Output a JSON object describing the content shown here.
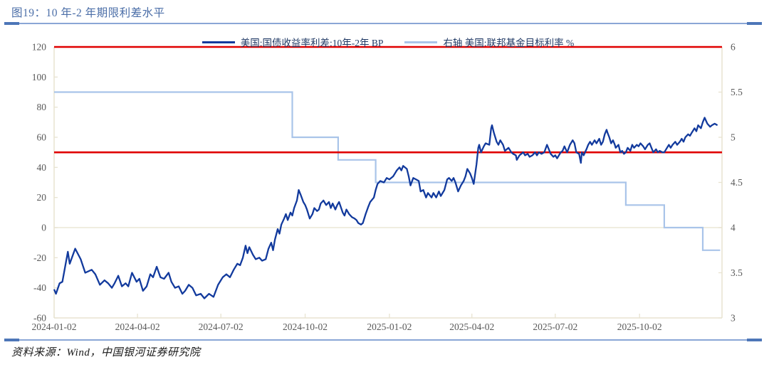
{
  "header": {
    "title": "图19：10 年-2 年期限利差水平"
  },
  "footer": {
    "source": "资料来源：Wind，中国银河证券研究院"
  },
  "colors": {
    "title_blue": "#4a6da7",
    "rule_line": "#8aa6d6",
    "rule_dash": "#4d76b8",
    "axis_text": "#595959",
    "grid": "#ece7d6",
    "spine": "#e8e3d1",
    "spread_line": "#123a9d",
    "fed_line": "#a9c4e9",
    "reference_red": "#e00000",
    "legend_text": "#1f3864"
  },
  "chart_data": {
    "type": "line",
    "title": "图19：10 年-2 年期限利差水平",
    "x_domain": [
      "2024-01-02",
      "2025-12-31"
    ],
    "x_ticks": [
      "2024-01-02",
      "2024-04-02",
      "2024-07-02",
      "2024-10-02",
      "2025-01-02",
      "2025-04-02",
      "2025-07-02",
      "2025-10-02"
    ],
    "left_axis": {
      "min": -60,
      "max": 120,
      "ticks": [
        120,
        100,
        80,
        60,
        40,
        20,
        0,
        -20,
        -40,
        -60
      ],
      "label": "BP"
    },
    "right_axis": {
      "min": 3,
      "max": 6,
      "ticks": [
        6,
        5.5,
        5,
        4.5,
        4,
        3.5,
        3
      ],
      "label": "%"
    },
    "grid": "zero-line-only",
    "legend_position": "top-center",
    "reference_lines": [
      {
        "axis": "left",
        "value": 120,
        "color": "#e00000"
      },
      {
        "axis": "left",
        "value": 50,
        "color": "#e00000"
      }
    ],
    "series": [
      {
        "name": "美国:国债收益率利差:10年-2年 BP",
        "axis": "left",
        "mode": "line",
        "color": "#123a9d",
        "width": 2.3,
        "points": [
          [
            "2024-01-02",
            -41
          ],
          [
            "2024-01-04",
            -44
          ],
          [
            "2024-01-08",
            -37
          ],
          [
            "2024-01-11",
            -36
          ],
          [
            "2024-01-17",
            -16
          ],
          [
            "2024-01-19",
            -24
          ],
          [
            "2024-01-25",
            -14
          ],
          [
            "2024-01-31",
            -21
          ],
          [
            "2024-02-05",
            -30
          ],
          [
            "2024-02-12",
            -28
          ],
          [
            "2024-02-16",
            -31
          ],
          [
            "2024-02-21",
            -38
          ],
          [
            "2024-02-26",
            -35
          ],
          [
            "2024-03-01",
            -37
          ],
          [
            "2024-03-05",
            -40
          ],
          [
            "2024-03-08",
            -37
          ],
          [
            "2024-03-12",
            -32
          ],
          [
            "2024-03-16",
            -39
          ],
          [
            "2024-03-20",
            -37
          ],
          [
            "2024-03-23",
            -39
          ],
          [
            "2024-03-27",
            -30
          ],
          [
            "2024-04-01",
            -36
          ],
          [
            "2024-04-04",
            -34
          ],
          [
            "2024-04-08",
            -42
          ],
          [
            "2024-04-12",
            -39
          ],
          [
            "2024-04-16",
            -31
          ],
          [
            "2024-04-19",
            -33
          ],
          [
            "2024-04-23",
            -26
          ],
          [
            "2024-04-27",
            -33
          ],
          [
            "2024-05-01",
            -34
          ],
          [
            "2024-05-06",
            -30
          ],
          [
            "2024-05-09",
            -36
          ],
          [
            "2024-05-13",
            -40
          ],
          [
            "2024-05-17",
            -39
          ],
          [
            "2024-05-21",
            -44
          ],
          [
            "2024-05-24",
            -42
          ],
          [
            "2024-05-28",
            -38
          ],
          [
            "2024-06-01",
            -40
          ],
          [
            "2024-06-05",
            -45
          ],
          [
            "2024-06-10",
            -44
          ],
          [
            "2024-06-14",
            -47
          ],
          [
            "2024-06-19",
            -44
          ],
          [
            "2024-06-24",
            -46
          ],
          [
            "2024-06-29",
            -38
          ],
          [
            "2024-07-04",
            -33
          ],
          [
            "2024-07-08",
            -31
          ],
          [
            "2024-07-12",
            -33
          ],
          [
            "2024-07-16",
            -28
          ],
          [
            "2024-07-20",
            -24
          ],
          [
            "2024-07-23",
            -25
          ],
          [
            "2024-07-26",
            -20
          ],
          [
            "2024-07-29",
            -12
          ],
          [
            "2024-07-31",
            -17
          ],
          [
            "2024-08-02",
            -13
          ],
          [
            "2024-08-06",
            -18
          ],
          [
            "2024-08-09",
            -21
          ],
          [
            "2024-08-13",
            -20
          ],
          [
            "2024-08-16",
            -22
          ],
          [
            "2024-08-20",
            -21
          ],
          [
            "2024-08-23",
            -14
          ],
          [
            "2024-08-26",
            -10
          ],
          [
            "2024-08-28",
            -15
          ],
          [
            "2024-08-30",
            -8
          ],
          [
            "2024-09-02",
            -1
          ],
          [
            "2024-09-04",
            -4
          ],
          [
            "2024-09-06",
            2
          ],
          [
            "2024-09-09",
            6
          ],
          [
            "2024-09-11",
            9
          ],
          [
            "2024-09-13",
            5
          ],
          [
            "2024-09-16",
            10
          ],
          [
            "2024-09-18",
            8
          ],
          [
            "2024-09-20",
            13
          ],
          [
            "2024-09-23",
            18
          ],
          [
            "2024-09-25",
            25
          ],
          [
            "2024-09-27",
            22
          ],
          [
            "2024-09-30",
            17
          ],
          [
            "2024-10-02",
            15
          ],
          [
            "2024-10-04",
            12
          ],
          [
            "2024-10-07",
            6
          ],
          [
            "2024-10-10",
            9
          ],
          [
            "2024-10-12",
            13
          ],
          [
            "2024-10-15",
            11
          ],
          [
            "2024-10-17",
            12
          ],
          [
            "2024-10-19",
            16
          ],
          [
            "2024-10-22",
            18
          ],
          [
            "2024-10-25",
            15
          ],
          [
            "2024-10-28",
            17
          ],
          [
            "2024-10-30",
            13
          ],
          [
            "2024-11-01",
            16
          ],
          [
            "2024-11-04",
            12
          ],
          [
            "2024-11-06",
            15
          ],
          [
            "2024-11-08",
            17
          ],
          [
            "2024-11-12",
            10
          ],
          [
            "2024-11-14",
            8
          ],
          [
            "2024-11-16",
            12
          ],
          [
            "2024-11-19",
            9
          ],
          [
            "2024-11-22",
            7
          ],
          [
            "2024-11-25",
            6
          ],
          [
            "2024-11-27",
            5
          ],
          [
            "2024-11-29",
            3
          ],
          [
            "2024-12-02",
            2
          ],
          [
            "2024-12-04",
            3
          ],
          [
            "2024-12-07",
            9
          ],
          [
            "2024-12-10",
            14
          ],
          [
            "2024-12-12",
            17
          ],
          [
            "2024-12-16",
            20
          ],
          [
            "2024-12-18",
            25
          ],
          [
            "2024-12-20",
            29
          ],
          [
            "2024-12-23",
            31
          ],
          [
            "2024-12-27",
            30
          ],
          [
            "2024-12-30",
            33
          ],
          [
            "2025-01-02",
            32
          ],
          [
            "2025-01-06",
            34
          ],
          [
            "2025-01-08",
            36
          ],
          [
            "2025-01-10",
            38
          ],
          [
            "2025-01-13",
            40
          ],
          [
            "2025-01-15",
            38
          ],
          [
            "2025-01-17",
            41
          ],
          [
            "2025-01-21",
            39
          ],
          [
            "2025-01-23",
            34
          ],
          [
            "2025-01-25",
            28
          ],
          [
            "2025-01-28",
            33
          ],
          [
            "2025-01-31",
            32
          ],
          [
            "2025-02-03",
            31
          ],
          [
            "2025-02-05",
            24
          ],
          [
            "2025-02-08",
            25
          ],
          [
            "2025-02-11",
            20
          ],
          [
            "2025-02-13",
            23
          ],
          [
            "2025-02-17",
            20
          ],
          [
            "2025-02-19",
            23
          ],
          [
            "2025-02-22",
            20
          ],
          [
            "2025-02-25",
            24
          ],
          [
            "2025-02-27",
            21
          ],
          [
            "2025-03-03",
            25
          ],
          [
            "2025-03-06",
            32
          ],
          [
            "2025-03-08",
            33
          ],
          [
            "2025-03-11",
            31
          ],
          [
            "2025-03-13",
            33
          ],
          [
            "2025-03-15",
            30
          ],
          [
            "2025-03-18",
            24
          ],
          [
            "2025-03-21",
            28
          ],
          [
            "2025-03-24",
            31
          ],
          [
            "2025-03-26",
            34
          ],
          [
            "2025-03-28",
            39
          ],
          [
            "2025-03-31",
            36
          ],
          [
            "2025-04-02",
            33
          ],
          [
            "2025-04-04",
            29
          ],
          [
            "2025-04-07",
            42
          ],
          [
            "2025-04-09",
            53
          ],
          [
            "2025-04-10",
            55
          ],
          [
            "2025-04-12",
            50
          ],
          [
            "2025-04-15",
            54
          ],
          [
            "2025-04-17",
            56
          ],
          [
            "2025-04-21",
            55
          ],
          [
            "2025-04-23",
            66
          ],
          [
            "2025-04-24",
            68
          ],
          [
            "2025-04-26",
            63
          ],
          [
            "2025-04-29",
            57
          ],
          [
            "2025-05-01",
            55
          ],
          [
            "2025-05-03",
            58
          ],
          [
            "2025-05-06",
            55
          ],
          [
            "2025-05-08",
            51
          ],
          [
            "2025-05-12",
            53
          ],
          [
            "2025-05-15",
            50
          ],
          [
            "2025-05-17",
            49
          ],
          [
            "2025-05-20",
            48
          ],
          [
            "2025-05-21",
            45
          ],
          [
            "2025-05-24",
            48
          ],
          [
            "2025-05-28",
            50
          ],
          [
            "2025-05-30",
            48
          ],
          [
            "2025-06-02",
            49
          ],
          [
            "2025-06-04",
            47
          ],
          [
            "2025-06-07",
            48
          ],
          [
            "2025-06-10",
            50
          ],
          [
            "2025-06-12",
            48
          ],
          [
            "2025-06-14",
            50
          ],
          [
            "2025-06-17",
            49
          ],
          [
            "2025-06-20",
            50
          ],
          [
            "2025-06-23",
            55
          ],
          [
            "2025-06-25",
            52
          ],
          [
            "2025-06-27",
            49
          ],
          [
            "2025-06-30",
            47
          ],
          [
            "2025-07-02",
            48
          ],
          [
            "2025-07-04",
            46
          ],
          [
            "2025-07-08",
            50
          ],
          [
            "2025-07-10",
            51
          ],
          [
            "2025-07-12",
            54
          ],
          [
            "2025-07-15",
            50
          ],
          [
            "2025-07-18",
            55
          ],
          [
            "2025-07-21",
            58
          ],
          [
            "2025-07-23",
            56
          ],
          [
            "2025-07-25",
            50
          ],
          [
            "2025-07-28",
            49
          ],
          [
            "2025-07-30",
            43
          ],
          [
            "2025-07-31",
            50
          ],
          [
            "2025-08-02",
            48
          ],
          [
            "2025-08-05",
            52
          ],
          [
            "2025-08-07",
            55
          ],
          [
            "2025-08-09",
            57
          ],
          [
            "2025-08-11",
            55
          ],
          [
            "2025-08-14",
            58
          ],
          [
            "2025-08-16",
            56
          ],
          [
            "2025-08-19",
            59
          ],
          [
            "2025-08-21",
            55
          ],
          [
            "2025-08-23",
            57
          ],
          [
            "2025-08-25",
            62
          ],
          [
            "2025-08-27",
            65
          ],
          [
            "2025-08-28",
            63
          ],
          [
            "2025-08-30",
            60
          ],
          [
            "2025-09-01",
            56
          ],
          [
            "2025-09-03",
            58
          ],
          [
            "2025-09-05",
            55
          ],
          [
            "2025-09-06",
            53
          ],
          [
            "2025-09-09",
            55
          ],
          [
            "2025-09-11",
            50
          ],
          [
            "2025-09-13",
            51
          ],
          [
            "2025-09-15",
            49
          ],
          [
            "2025-09-17",
            50
          ],
          [
            "2025-09-19",
            53
          ],
          [
            "2025-09-22",
            51
          ],
          [
            "2025-09-24",
            55
          ],
          [
            "2025-09-26",
            53
          ],
          [
            "2025-09-29",
            55
          ],
          [
            "2025-10-01",
            54
          ],
          [
            "2025-10-03",
            56
          ],
          [
            "2025-10-06",
            54
          ],
          [
            "2025-10-08",
            52
          ],
          [
            "2025-10-11",
            55
          ],
          [
            "2025-10-13",
            56
          ],
          [
            "2025-10-15",
            53
          ],
          [
            "2025-10-17",
            50
          ],
          [
            "2025-10-20",
            52
          ],
          [
            "2025-10-22",
            50
          ],
          [
            "2025-10-24",
            51
          ],
          [
            "2025-10-27",
            50
          ],
          [
            "2025-10-29",
            50
          ],
          [
            "2025-11-01",
            53
          ],
          [
            "2025-11-03",
            55
          ],
          [
            "2025-11-05",
            53
          ],
          [
            "2025-11-07",
            55
          ],
          [
            "2025-11-10",
            57
          ],
          [
            "2025-11-12",
            55
          ],
          [
            "2025-11-15",
            57
          ],
          [
            "2025-11-17",
            59
          ],
          [
            "2025-11-19",
            57
          ],
          [
            "2025-11-21",
            60
          ],
          [
            "2025-11-24",
            62
          ],
          [
            "2025-11-26",
            61
          ],
          [
            "2025-11-28",
            63
          ],
          [
            "2025-12-01",
            66
          ],
          [
            "2025-12-03",
            64
          ],
          [
            "2025-12-05",
            68
          ],
          [
            "2025-12-08",
            66
          ],
          [
            "2025-12-10",
            70
          ],
          [
            "2025-12-12",
            73
          ],
          [
            "2025-12-15",
            69
          ],
          [
            "2025-12-18",
            67
          ],
          [
            "2025-12-20",
            68
          ],
          [
            "2025-12-23",
            69
          ],
          [
            "2025-12-26",
            68
          ]
        ]
      },
      {
        "name": "右轴 美国:联邦基金目标利率 %",
        "axis": "right",
        "mode": "step",
        "color": "#a9c4e9",
        "width": 2.2,
        "points": [
          [
            "2024-01-02",
            5.5
          ],
          [
            "2024-09-18",
            5.0
          ],
          [
            "2024-11-07",
            4.75
          ],
          [
            "2024-12-18",
            4.5
          ],
          [
            "2025-09-17",
            4.25
          ],
          [
            "2025-10-29",
            4.0
          ],
          [
            "2025-12-10",
            3.75
          ],
          [
            "2025-12-29",
            3.75
          ]
        ]
      }
    ]
  }
}
